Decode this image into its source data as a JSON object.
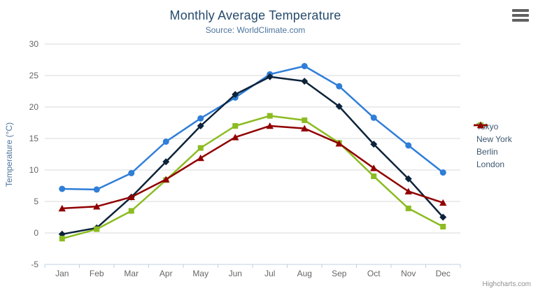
{
  "credits": "Highcharts.com",
  "context_menu_icon": "hamburger-icon",
  "colors": {
    "title": "#274b6d",
    "subtitle": "#4d759e",
    "axis_label": "#666666",
    "gridline": "#d8d8d8",
    "axis_line": "#c0d0e0",
    "legend_text": "#3E576F"
  },
  "chart_data": {
    "type": "line",
    "title": "Monthly Average Temperature",
    "subtitle": "Source: WorldClimate.com",
    "ylabel": "Temperature (°C)",
    "xlabel": "",
    "ylim": [
      -5,
      30
    ],
    "y_ticks": [
      -5,
      0,
      5,
      10,
      15,
      20,
      25,
      30
    ],
    "grid": true,
    "legend_position": "right",
    "categories": [
      "Jan",
      "Feb",
      "Mar",
      "Apr",
      "May",
      "Jun",
      "Jul",
      "Aug",
      "Sep",
      "Oct",
      "Nov",
      "Dec"
    ],
    "series": [
      {
        "name": "Tokyo",
        "color": "#2f7ed8",
        "marker": "circle",
        "values": [
          7.0,
          6.9,
          9.5,
          14.5,
          18.2,
          21.5,
          25.2,
          26.5,
          23.3,
          18.3,
          13.9,
          9.6
        ]
      },
      {
        "name": "New York",
        "color": "#0d233a",
        "marker": "diamond",
        "values": [
          -0.2,
          0.8,
          5.7,
          11.3,
          17.0,
          22.0,
          24.8,
          24.1,
          20.1,
          14.1,
          8.6,
          2.5
        ]
      },
      {
        "name": "Berlin",
        "color": "#8bbc21",
        "marker": "square",
        "values": [
          -0.9,
          0.6,
          3.5,
          8.4,
          13.5,
          17.0,
          18.6,
          17.9,
          14.3,
          9.0,
          3.9,
          1.0
        ]
      },
      {
        "name": "London",
        "color": "#910000",
        "marker": "triangle",
        "values": [
          3.9,
          4.2,
          5.7,
          8.5,
          11.9,
          15.2,
          17.0,
          16.6,
          14.2,
          10.3,
          6.6,
          4.8
        ]
      }
    ]
  }
}
